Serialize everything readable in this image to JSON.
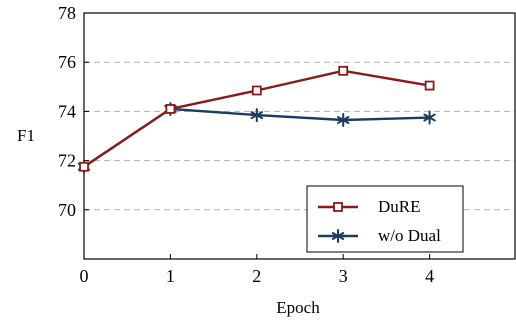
{
  "chart_data": {
    "type": "line",
    "xlabel": "Epoch",
    "ylabel": "F1",
    "xlim": [
      0,
      5
    ],
    "ylim": [
      68,
      78
    ],
    "x": [
      0,
      1,
      2,
      3,
      4
    ],
    "xticks": [
      0,
      1,
      2,
      3,
      4
    ],
    "yticks": [
      70,
      72,
      74,
      76,
      78
    ],
    "grid": "horizontal dashed",
    "legend_position": "bottom-right",
    "series": [
      {
        "name": "DuRE",
        "values": [
          71.75,
          74.1,
          74.85,
          75.65,
          75.05
        ],
        "color": "#8b1a1a",
        "marker": "square"
      },
      {
        "name": "w/o Dual",
        "values": [
          71.75,
          74.1,
          73.85,
          73.65,
          73.75
        ],
        "color": "#1c3b5e",
        "marker": "star"
      }
    ]
  }
}
